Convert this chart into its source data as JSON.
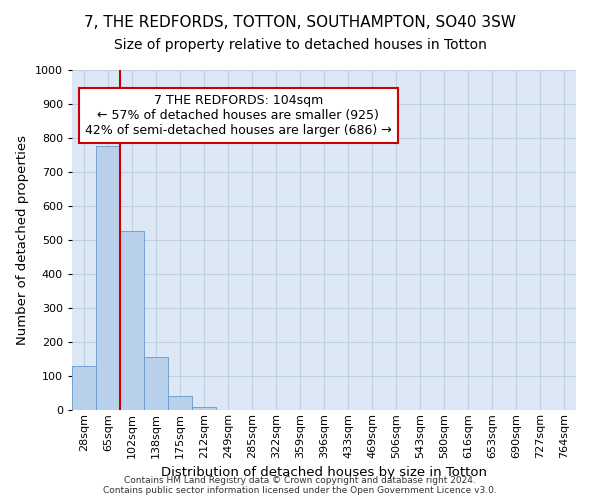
{
  "title": "7, THE REDFORDS, TOTTON, SOUTHAMPTON, SO40 3SW",
  "subtitle": "Size of property relative to detached houses in Totton",
  "xlabel": "Distribution of detached houses by size in Totton",
  "ylabel": "Number of detached properties",
  "footer": "Contains HM Land Registry data © Crown copyright and database right 2024.\nContains public sector information licensed under the Open Government Licence v3.0.",
  "bin_labels": [
    "28sqm",
    "65sqm",
    "102sqm",
    "138sqm",
    "175sqm",
    "212sqm",
    "249sqm",
    "285sqm",
    "322sqm",
    "359sqm",
    "396sqm",
    "433sqm",
    "469sqm",
    "506sqm",
    "543sqm",
    "580sqm",
    "616sqm",
    "653sqm",
    "690sqm",
    "727sqm",
    "764sqm"
  ],
  "bar_values": [
    130,
    775,
    525,
    157,
    40,
    10,
    0,
    0,
    0,
    0,
    0,
    0,
    0,
    0,
    0,
    0,
    0,
    0,
    0,
    0,
    0
  ],
  "bar_color": "#b8d0ea",
  "bar_edgecolor": "#6699cc",
  "annotation_text": "7 THE REDFORDS: 104sqm\n← 57% of detached houses are smaller (925)\n42% of semi-detached houses are larger (686) →",
  "annotation_box_color": "#ffffff",
  "annotation_box_edgecolor": "#cc0000",
  "red_line_color": "#cc0000",
  "ylim": [
    0,
    1000
  ],
  "yticks": [
    0,
    100,
    200,
    300,
    400,
    500,
    600,
    700,
    800,
    900,
    1000
  ],
  "background_color": "#ffffff",
  "grid_color": "#c0d0e0",
  "title_fontsize": 11,
  "subtitle_fontsize": 10,
  "axis_label_fontsize": 9.5,
  "tick_fontsize": 8,
  "annotation_fontsize": 9,
  "footer_fontsize": 6.5
}
